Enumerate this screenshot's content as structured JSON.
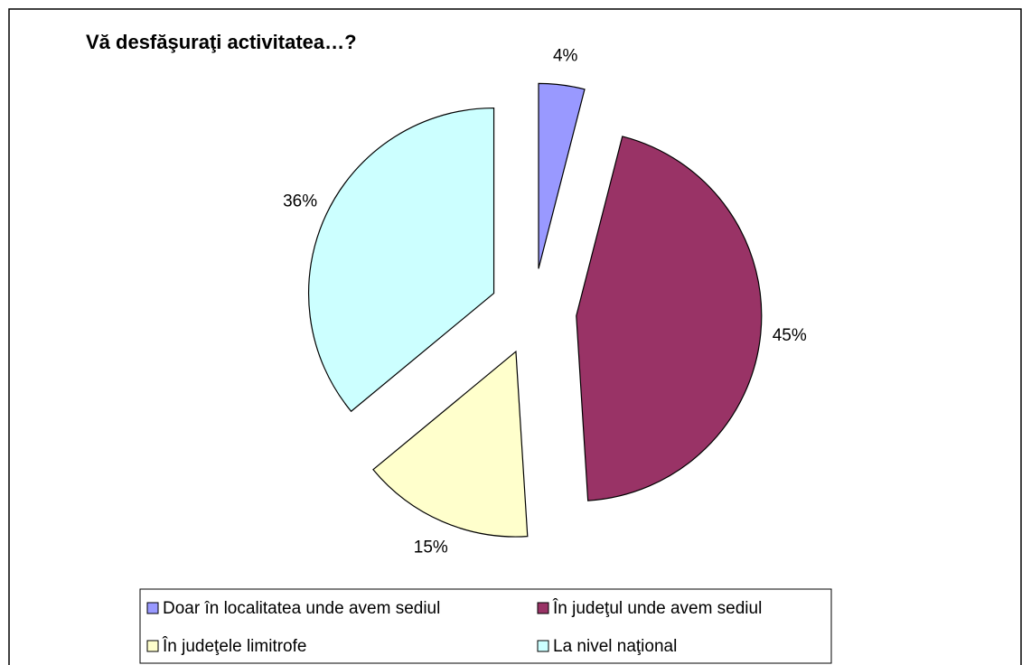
{
  "chart_data": {
    "type": "pie",
    "title": "Vă desfăşuraţi activitatea…?",
    "categories": [
      "Doar în localitatea unde avem sediul",
      "În judeţul unde avem sediul",
      "În judeţele limitrofe",
      "La nivel naţional"
    ],
    "values": [
      4,
      45,
      15,
      36
    ],
    "value_labels": [
      "4%",
      "45%",
      "15%",
      "36%"
    ],
    "colors": [
      "#9999ff",
      "#993366",
      "#ffffcc",
      "#ccffff"
    ],
    "legend": "bottom"
  }
}
